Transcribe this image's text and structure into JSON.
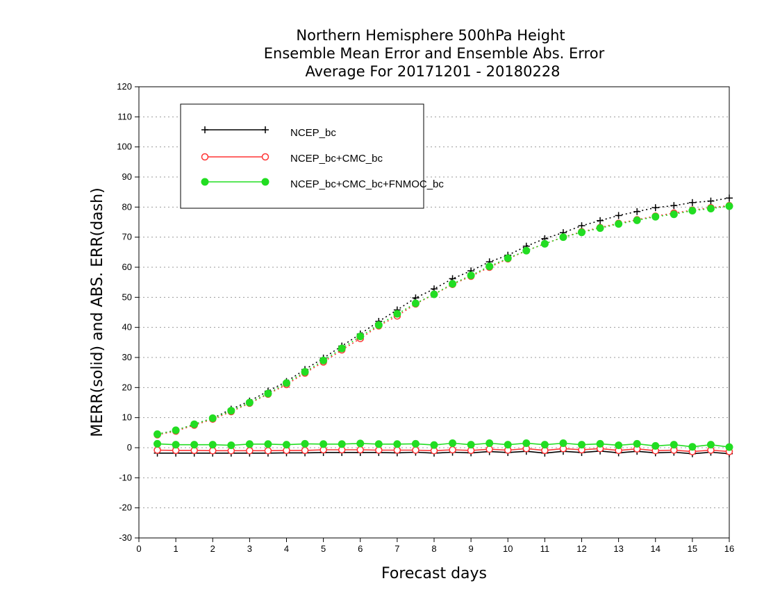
{
  "chart_data": {
    "type": "line",
    "title": [
      "Northern Hemisphere 500hPa Height",
      "Ensemble Mean Error and Ensemble Abs. Error",
      "Average For 20171201 - 20180228"
    ],
    "xlabel": "Forecast days",
    "ylabel": "MERR(solid) and ABS. ERR(dash)",
    "xlim": [
      0,
      16
    ],
    "ylim": [
      -30,
      120
    ],
    "xticks": [
      0,
      1,
      2,
      3,
      4,
      5,
      6,
      7,
      8,
      9,
      10,
      11,
      12,
      13,
      14,
      15,
      16
    ],
    "yticks": [
      -30,
      -20,
      -10,
      0,
      10,
      20,
      30,
      40,
      50,
      60,
      70,
      80,
      90,
      100,
      110,
      120
    ],
    "grid": "horizontal dotted",
    "legend_position": "top-left",
    "x": [
      0.5,
      1,
      1.5,
      2,
      2.5,
      3,
      3.5,
      4,
      4.5,
      5,
      5.5,
      6,
      6.5,
      7,
      7.5,
      8,
      8.5,
      9,
      9.5,
      10,
      10.5,
      11,
      11.5,
      12,
      12.5,
      13,
      13.5,
      14,
      14.5,
      15,
      15.5,
      16
    ],
    "series": [
      {
        "name": "NCEP_bc",
        "color": "#000000",
        "marker": "plus",
        "merr": [
          -1.8,
          -1.8,
          -1.8,
          -1.8,
          -1.8,
          -1.8,
          -1.8,
          -1.7,
          -1.7,
          -1.6,
          -1.6,
          -1.6,
          -1.6,
          -1.7,
          -1.5,
          -1.8,
          -1.5,
          -1.7,
          -1.3,
          -1.6,
          -1.2,
          -1.8,
          -1.2,
          -1.6,
          -1.1,
          -1.7,
          -1.2,
          -1.7,
          -1.5,
          -2.0,
          -1.5,
          -2.0
        ],
        "abs_err": [
          4.5,
          5.8,
          7.8,
          9.8,
          12.8,
          15.5,
          18.8,
          22.0,
          26.0,
          29.8,
          33.8,
          37.8,
          42.0,
          45.8,
          49.8,
          52.8,
          56.2,
          58.8,
          61.8,
          64.0,
          67.0,
          69.5,
          71.5,
          73.8,
          75.5,
          77.2,
          78.5,
          79.8,
          80.5,
          81.5,
          82.0,
          83.0
        ]
      },
      {
        "name": "NCEP_bc+CMC_bc",
        "color": "#ff3333",
        "marker": "open-circle",
        "merr": [
          -0.8,
          -0.9,
          -0.9,
          -1.0,
          -1.0,
          -1.0,
          -1.0,
          -0.9,
          -0.9,
          -0.7,
          -0.7,
          -0.7,
          -0.8,
          -0.8,
          -0.8,
          -1.0,
          -0.7,
          -0.9,
          -0.5,
          -0.8,
          -0.3,
          -0.9,
          -0.3,
          -0.7,
          -0.3,
          -0.9,
          -0.4,
          -1.0,
          -0.8,
          -1.3,
          -0.8,
          -1.3
        ],
        "abs_err": [
          4.3,
          5.5,
          7.5,
          9.5,
          12.0,
          14.8,
          17.8,
          21.0,
          24.8,
          28.5,
          32.5,
          36.3,
          40.5,
          43.8,
          47.8,
          51.0,
          54.3,
          57.0,
          60.0,
          62.8,
          65.5,
          67.8,
          70.0,
          71.8,
          73.2,
          74.6,
          75.8,
          77.0,
          78.0,
          79.0,
          79.8,
          80.5
        ]
      },
      {
        "name": "NCEP_bc+CMC_bc+FNMOC_bc",
        "color": "#22dd22",
        "marker": "filled-circle",
        "merr": [
          1.3,
          1.0,
          1.0,
          1.0,
          0.8,
          1.2,
          1.2,
          1.0,
          1.3,
          1.2,
          1.2,
          1.4,
          1.2,
          1.2,
          1.3,
          0.9,
          1.5,
          1.0,
          1.5,
          1.0,
          1.5,
          1.0,
          1.5,
          1.0,
          1.3,
          0.8,
          1.3,
          0.6,
          1.0,
          0.3,
          1.0,
          0.2
        ],
        "abs_err": [
          4.5,
          5.8,
          7.8,
          9.8,
          12.3,
          15.0,
          18.0,
          21.5,
          25.2,
          29.0,
          33.0,
          37.0,
          40.8,
          44.5,
          48.0,
          51.0,
          54.5,
          57.3,
          60.3,
          63.0,
          65.5,
          67.8,
          70.0,
          71.6,
          73.0,
          74.4,
          75.6,
          76.8,
          77.6,
          78.8,
          79.5,
          80.3
        ]
      }
    ]
  }
}
